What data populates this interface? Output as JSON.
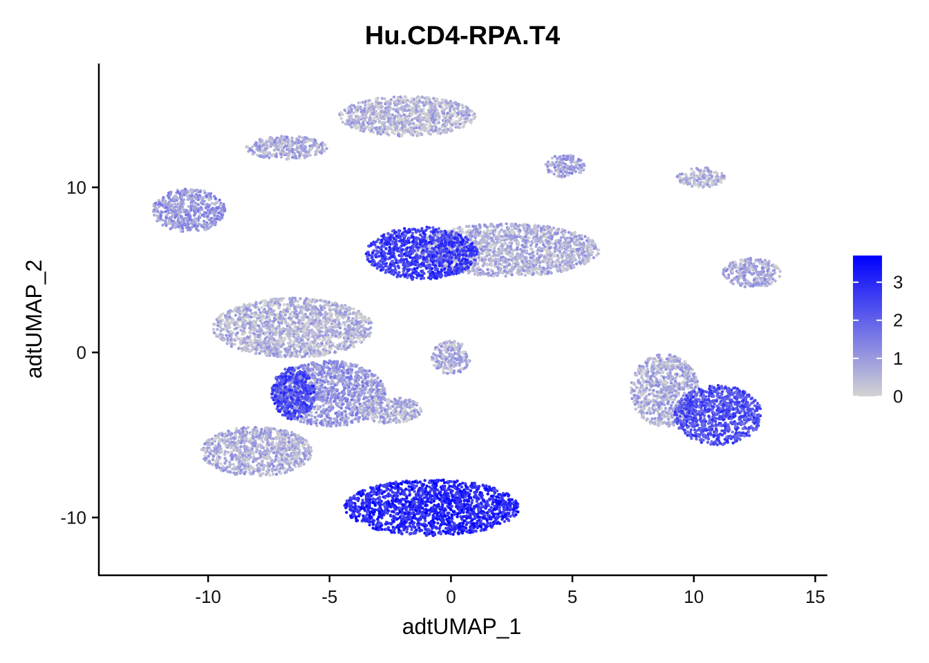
{
  "chart_data": {
    "type": "scatter",
    "title": "Hu.CD4-RPA.T4",
    "xlabel": "adtUMAP_1",
    "ylabel": "adtUMAP_2",
    "xlim": [
      -14.5,
      15.5
    ],
    "ylim": [
      -13.5,
      17.5
    ],
    "x_ticks": [
      -10,
      -5,
      0,
      5,
      10,
      15
    ],
    "x_tick_labels": [
      "-10",
      "-5",
      "0",
      "5",
      "10",
      "15"
    ],
    "y_ticks": [
      -10,
      0,
      10
    ],
    "y_tick_labels": [
      "-10",
      "0",
      "10"
    ],
    "grid": false,
    "legend": {
      "placement": "right",
      "type": "colorbar",
      "range": [
        0,
        3.7
      ],
      "ticks": [
        0,
        1,
        2,
        3
      ],
      "tick_labels": [
        "0",
        "1",
        "2",
        "3"
      ],
      "low_color": "#d3d3d3",
      "high_color": "#0000ff"
    },
    "clusters": [
      {
        "cx": -6.5,
        "cy": 1.5,
        "rx": 3.3,
        "ry": 1.8,
        "expr": 0.5
      },
      {
        "cx": -8.0,
        "cy": -6.0,
        "rx": 2.3,
        "ry": 1.5,
        "expr": 0.6
      },
      {
        "cx": -5.0,
        "cy": -2.5,
        "rx": 2.3,
        "ry": 2.0,
        "expr": 1.0
      },
      {
        "cx": -6.5,
        "cy": -2.5,
        "rx": 0.9,
        "ry": 1.6,
        "expr": 2.5
      },
      {
        "cx": -0.8,
        "cy": -9.4,
        "rx": 3.6,
        "ry": 1.7,
        "expr": 3.0
      },
      {
        "cx": 2.3,
        "cy": 6.2,
        "rx": 3.8,
        "ry": 1.6,
        "expr": 0.6
      },
      {
        "cx": -1.2,
        "cy": 6.0,
        "rx": 2.3,
        "ry": 1.6,
        "expr": 2.6
      },
      {
        "cx": -1.8,
        "cy": 14.3,
        "rx": 2.8,
        "ry": 1.2,
        "expr": 0.5
      },
      {
        "cx": -6.8,
        "cy": 12.4,
        "rx": 1.7,
        "ry": 0.7,
        "expr": 0.7
      },
      {
        "cx": -10.8,
        "cy": 8.6,
        "rx": 1.5,
        "ry": 1.3,
        "expr": 1.0
      },
      {
        "cx": 4.7,
        "cy": 11.3,
        "rx": 0.8,
        "ry": 0.7,
        "expr": 0.8
      },
      {
        "cx": 10.3,
        "cy": 10.6,
        "rx": 1.0,
        "ry": 0.6,
        "expr": 0.5
      },
      {
        "cx": 12.4,
        "cy": 4.8,
        "rx": 1.2,
        "ry": 0.9,
        "expr": 0.7
      },
      {
        "cx": 0.0,
        "cy": -0.3,
        "rx": 0.8,
        "ry": 1.0,
        "expr": 0.6
      },
      {
        "cx": 8.8,
        "cy": -2.3,
        "rx": 1.4,
        "ry": 2.2,
        "expr": 0.6
      },
      {
        "cx": 11.0,
        "cy": -3.8,
        "rx": 1.8,
        "ry": 1.8,
        "expr": 2.3
      },
      {
        "cx": -2.5,
        "cy": -3.5,
        "rx": 1.3,
        "ry": 0.8,
        "expr": 0.6
      }
    ]
  }
}
